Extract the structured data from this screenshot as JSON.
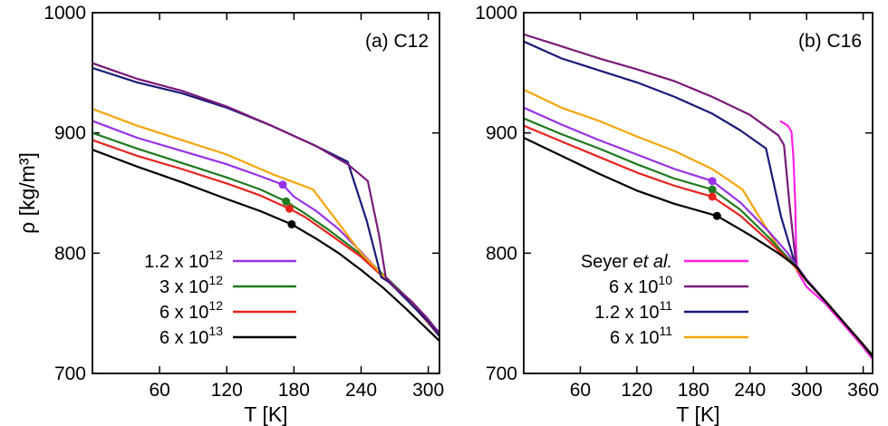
{
  "chart_data": [
    {
      "type": "line",
      "panel_label": "(a) C12",
      "xlabel": "T [K]",
      "ylabel": "ρ [kg/m³]",
      "xlim": [
        0,
        310
      ],
      "ylim": [
        700,
        1000
      ],
      "xticks": [
        60,
        120,
        180,
        240,
        300
      ],
      "yticks": [
        700,
        800,
        900,
        1000
      ],
      "grid": false,
      "legend_position": "bottom-left",
      "series": [
        {
          "name": "1.2 x 10^12",
          "legend_base": "1.2 x 10",
          "legend_exp": "12",
          "color": "#9932e6",
          "points": [
            [
              0,
              910
            ],
            [
              40,
              896
            ],
            [
              80,
              885
            ],
            [
              120,
              874
            ],
            [
              150,
              864
            ],
            [
              170,
              857
            ],
            [
              180,
              847
            ],
            [
              200,
              835
            ],
            [
              220,
              820
            ],
            [
              240,
              801
            ],
            [
              260,
              781
            ],
            [
              280,
              764
            ],
            [
              300,
              744
            ],
            [
              310,
              734
            ]
          ],
          "marker": [
            170,
            857
          ],
          "in_legend": true
        },
        {
          "name": "3 x 10^12",
          "legend_base": "3 x 10",
          "legend_exp": "12",
          "color": "#1f7a1f",
          "points": [
            [
              0,
              900
            ],
            [
              40,
              887
            ],
            [
              80,
              875
            ],
            [
              120,
              863
            ],
            [
              150,
              853
            ],
            [
              173,
              843
            ],
            [
              190,
              833
            ],
            [
              210,
              820
            ],
            [
              240,
              799
            ],
            [
              260,
              782
            ],
            [
              280,
              764
            ],
            [
              300,
              744
            ],
            [
              310,
              733
            ]
          ],
          "marker": [
            173,
            843
          ],
          "in_legend": true
        },
        {
          "name": "6 x 10^12",
          "legend_base": "6 x 10",
          "legend_exp": "12",
          "color": "#e8231f",
          "points": [
            [
              0,
              894
            ],
            [
              40,
              881
            ],
            [
              80,
              870
            ],
            [
              120,
              858
            ],
            [
              150,
              848
            ],
            [
              176,
              837
            ],
            [
              190,
              830
            ],
            [
              210,
              817
            ],
            [
              240,
              797
            ],
            [
              260,
              780
            ],
            [
              280,
              763
            ],
            [
              300,
              742
            ],
            [
              310,
              731
            ]
          ],
          "marker": [
            176,
            837
          ],
          "in_legend": true
        },
        {
          "name": "6 x 10^13",
          "legend_base": "6 x 10",
          "legend_exp": "13",
          "color": "#000000",
          "points": [
            [
              0,
              886
            ],
            [
              40,
              872
            ],
            [
              80,
              859
            ],
            [
              120,
              845
            ],
            [
              150,
              835
            ],
            [
              178,
              824
            ],
            [
              200,
              812
            ],
            [
              220,
              800
            ],
            [
              240,
              786
            ],
            [
              260,
              771
            ],
            [
              280,
              754
            ],
            [
              300,
              736
            ],
            [
              310,
              727
            ]
          ],
          "marker": [
            178,
            824
          ],
          "in_legend": true
        },
        {
          "name": "",
          "color": "#f5a50a",
          "points": [
            [
              0,
              920
            ],
            [
              40,
              906
            ],
            [
              80,
              894
            ],
            [
              120,
              882
            ],
            [
              160,
              866
            ],
            [
              197,
              853
            ],
            [
              215,
              831
            ],
            [
              240,
              800
            ],
            [
              260,
              781
            ],
            [
              280,
              763
            ],
            [
              300,
              743
            ],
            [
              310,
              732
            ]
          ],
          "in_legend": false
        },
        {
          "name": "",
          "color": "#1a1a7a",
          "points": [
            [
              0,
              954
            ],
            [
              40,
              942
            ],
            [
              80,
              933
            ],
            [
              120,
              921
            ],
            [
              160,
              906
            ],
            [
              200,
              889
            ],
            [
              228,
              876
            ],
            [
              245,
              827
            ],
            [
              258,
              780
            ],
            [
              265,
              776
            ],
            [
              280,
              762
            ],
            [
              300,
              743
            ],
            [
              310,
              731
            ]
          ],
          "in_legend": false
        },
        {
          "name": "",
          "color": "#7a1a7a",
          "points": [
            [
              0,
              958
            ],
            [
              40,
              945
            ],
            [
              80,
              935
            ],
            [
              120,
              922
            ],
            [
              160,
              906
            ],
            [
              200,
              889
            ],
            [
              228,
              874
            ],
            [
              246,
              860
            ],
            [
              256,
              815
            ],
            [
              262,
              780
            ],
            [
              270,
              772
            ],
            [
              285,
              760
            ],
            [
              300,
              745
            ],
            [
              310,
              733
            ]
          ],
          "in_legend": false
        }
      ]
    },
    {
      "type": "line",
      "panel_label": "(b) C16",
      "xlabel": "T [K]",
      "ylabel": "",
      "xlim": [
        0,
        370
      ],
      "ylim": [
        700,
        1000
      ],
      "xticks": [
        60,
        120,
        180,
        240,
        300,
        360
      ],
      "yticks": [
        700,
        800,
        900,
        1000
      ],
      "grid": false,
      "legend_position": "bottom-left",
      "series": [
        {
          "name": "Seyer et al.",
          "legend_base": "Seyer ",
          "legend_italic": "et al.",
          "color": "#ff1fe6",
          "points": [
            [
              272,
              910
            ],
            [
              280,
              906
            ],
            [
              284,
              901
            ],
            [
              286,
              880
            ],
            [
              288,
              840
            ],
            [
              289,
              800
            ],
            [
              290,
              785
            ],
            [
              300,
              772
            ],
            [
              320,
              758
            ],
            [
              340,
              740
            ],
            [
              360,
              722
            ],
            [
              370,
              712
            ]
          ],
          "in_legend": true
        },
        {
          "name": "6 x 10^10",
          "legend_base": "6 x 10",
          "legend_exp": "10",
          "color": "#7a1a7a",
          "points": [
            [
              0,
              982
            ],
            [
              40,
              972
            ],
            [
              80,
              962
            ],
            [
              120,
              953
            ],
            [
              160,
              943
            ],
            [
              200,
              930
            ],
            [
              240,
              915
            ],
            [
              270,
              898
            ],
            [
              276,
              890
            ],
            [
              282,
              840
            ],
            [
              289,
              790
            ],
            [
              300,
              778
            ],
            [
              320,
              760
            ],
            [
              340,
              742
            ],
            [
              360,
              724
            ],
            [
              370,
              715
            ]
          ],
          "in_legend": true
        },
        {
          "name": "1.2 x 10^11",
          "legend_base": "1.2 x 10",
          "legend_exp": "11",
          "color": "#1a1a7a",
          "points": [
            [
              0,
              976
            ],
            [
              40,
              962
            ],
            [
              80,
              952
            ],
            [
              120,
              942
            ],
            [
              160,
              930
            ],
            [
              200,
              916
            ],
            [
              230,
              902
            ],
            [
              257,
              887
            ],
            [
              273,
              830
            ],
            [
              289,
              788
            ],
            [
              300,
              777
            ],
            [
              320,
              760
            ],
            [
              340,
              742
            ],
            [
              360,
              724
            ],
            [
              370,
              715
            ]
          ],
          "in_legend": true
        },
        {
          "name": "6 x 10^11",
          "legend_base": "6 x 10",
          "legend_exp": "11",
          "color": "#f5a50a",
          "points": [
            [
              0,
              936
            ],
            [
              40,
              921
            ],
            [
              80,
              910
            ],
            [
              120,
              897
            ],
            [
              160,
              885
            ],
            [
              200,
              870
            ],
            [
              232,
              853
            ],
            [
              250,
              830
            ],
            [
              270,
              805
            ],
            [
              289,
              787
            ],
            [
              300,
              777
            ],
            [
              320,
              760
            ],
            [
              340,
              742
            ],
            [
              360,
              724
            ],
            [
              370,
              715
            ]
          ],
          "in_legend": true
        },
        {
          "name": "",
          "color": "#9932e6",
          "points": [
            [
              0,
              921
            ],
            [
              40,
              907
            ],
            [
              80,
              894
            ],
            [
              120,
              882
            ],
            [
              160,
              870
            ],
            [
              200,
              860
            ],
            [
              230,
              842
            ],
            [
              260,
              818
            ],
            [
              280,
              800
            ],
            [
              289,
              790
            ],
            [
              300,
              778
            ],
            [
              320,
              760
            ],
            [
              340,
              742
            ],
            [
              360,
              724
            ],
            [
              370,
              715
            ]
          ],
          "marker": [
            200,
            860
          ],
          "in_legend": false
        },
        {
          "name": "",
          "color": "#1f7a1f",
          "points": [
            [
              0,
              912
            ],
            [
              40,
              899
            ],
            [
              80,
              887
            ],
            [
              120,
              874
            ],
            [
              160,
              862
            ],
            [
              200,
              853
            ],
            [
              230,
              836
            ],
            [
              260,
              813
            ],
            [
              289,
              789
            ],
            [
              300,
              777
            ],
            [
              320,
              760
            ],
            [
              340,
              742
            ],
            [
              360,
              724
            ],
            [
              370,
              715
            ]
          ],
          "marker": [
            200,
            853
          ],
          "in_legend": false
        },
        {
          "name": "",
          "color": "#e8231f",
          "points": [
            [
              0,
              906
            ],
            [
              40,
              893
            ],
            [
              80,
              880
            ],
            [
              120,
              867
            ],
            [
              160,
              856
            ],
            [
              200,
              847
            ],
            [
              230,
              831
            ],
            [
              260,
              810
            ],
            [
              289,
              788
            ],
            [
              300,
              777
            ],
            [
              320,
              760
            ],
            [
              340,
              742
            ],
            [
              360,
              724
            ],
            [
              370,
              714
            ]
          ],
          "marker": [
            200,
            847
          ],
          "in_legend": false
        },
        {
          "name": "",
          "color": "#000000",
          "points": [
            [
              0,
              896
            ],
            [
              40,
              881
            ],
            [
              80,
              866
            ],
            [
              120,
              852
            ],
            [
              160,
              841
            ],
            [
              205,
              831
            ],
            [
              240,
              815
            ],
            [
              270,
              800
            ],
            [
              289,
              789
            ],
            [
              300,
              777
            ],
            [
              320,
              760
            ],
            [
              340,
              742
            ],
            [
              360,
              724
            ],
            [
              370,
              714
            ]
          ],
          "marker": [
            205,
            831
          ],
          "in_legend": false
        }
      ]
    }
  ]
}
